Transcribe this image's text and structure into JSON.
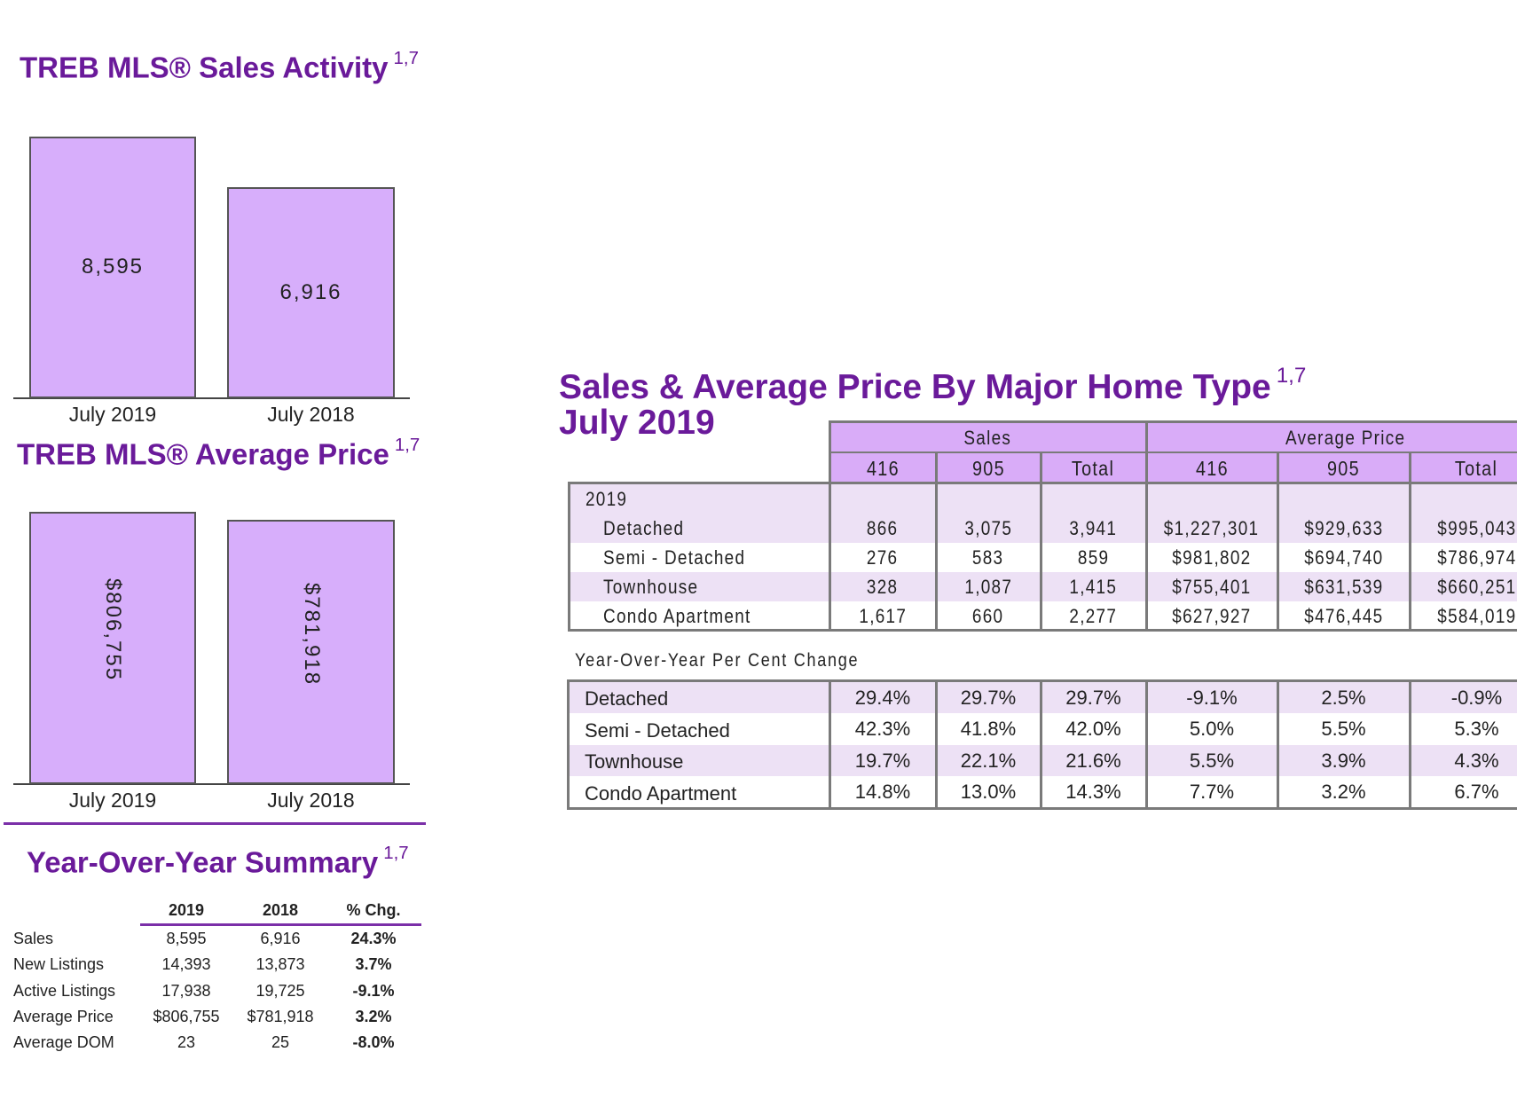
{
  "sales_activity": {
    "title": "TREB MLS® Sales Activity",
    "footnote": "1,7"
  },
  "average_price": {
    "title": "TREB MLS® Average Price",
    "footnote": "1,7"
  },
  "chart_data": [
    {
      "type": "bar",
      "title": "TREB MLS® Sales Activity",
      "categories": [
        "July 2019",
        "July 2018"
      ],
      "values": [
        8595,
        6916
      ],
      "labels": [
        "8,595",
        "6,916"
      ],
      "xlabel": "",
      "ylabel": "",
      "ylim": [
        0,
        8595
      ]
    },
    {
      "type": "bar",
      "title": "TREB MLS® Average Price",
      "categories": [
        "July 2019",
        "July 2018"
      ],
      "values": [
        806755,
        781918
      ],
      "labels": [
        "$806,755",
        "$781,918"
      ],
      "xlabel": "",
      "ylabel": "",
      "ylim": [
        0,
        806755
      ]
    }
  ],
  "summary": {
    "title": "Year-Over-Year Summary",
    "footnote": "1,7",
    "headers": [
      "2019",
      "2018",
      "% Chg."
    ],
    "rows": [
      {
        "label": "Sales",
        "y2019": "8,595",
        "y2018": "6,916",
        "chg": "24.3%"
      },
      {
        "label": "New Listings",
        "y2019": "14,393",
        "y2018": "13,873",
        "chg": "3.7%"
      },
      {
        "label": "Active Listings",
        "y2019": "17,938",
        "y2018": "19,725",
        "chg": "-9.1%"
      },
      {
        "label": "Average Price",
        "y2019": "$806,755",
        "y2018": "$781,918",
        "chg": "3.2%"
      },
      {
        "label": "Average DOM",
        "y2019": "23",
        "y2018": "25",
        "chg": "-8.0%"
      }
    ]
  },
  "home_type": {
    "title": "Sales & Average Price By Major Home Type",
    "footnote": "1,7",
    "subtitle": "July 2019",
    "group_headers": [
      "Sales",
      "Average Price"
    ],
    "col_headers": [
      "416",
      "905",
      "Total",
      "416",
      "905",
      "Total"
    ],
    "year_label": "2019",
    "rows": [
      {
        "label": "Detached",
        "values": [
          "866",
          "3,075",
          "3,941",
          "$1,227,301",
          "$929,633",
          "$995,043"
        ]
      },
      {
        "label": "Semi - Detached",
        "values": [
          "276",
          "583",
          "859",
          "$981,802",
          "$694,740",
          "$786,974"
        ]
      },
      {
        "label": "Townhouse",
        "values": [
          "328",
          "1,087",
          "1,415",
          "$755,401",
          "$631,539",
          "$660,251"
        ]
      },
      {
        "label": "Condo Apartment",
        "values": [
          "1,617",
          "660",
          "2,277",
          "$627,927",
          "$476,445",
          "$584,019"
        ]
      }
    ],
    "yoy_label": "Year-Over-Year Per Cent Change",
    "yoy_rows": [
      {
        "label": "Detached",
        "values": [
          "29.4%",
          "29.7%",
          "29.7%",
          "-9.1%",
          "2.5%",
          "-0.9%"
        ]
      },
      {
        "label": "Semi - Detached",
        "values": [
          "42.3%",
          "41.8%",
          "42.0%",
          "5.0%",
          "5.5%",
          "5.3%"
        ]
      },
      {
        "label": "Townhouse",
        "values": [
          "19.7%",
          "22.1%",
          "21.6%",
          "5.5%",
          "3.9%",
          "4.3%"
        ]
      },
      {
        "label": "Condo Apartment",
        "values": [
          "14.8%",
          "13.0%",
          "14.3%",
          "7.7%",
          "3.2%",
          "6.7%"
        ]
      }
    ]
  },
  "colors": {
    "title": "#6a1a9a",
    "bar": "#d7aefb",
    "header": "#d9acf8",
    "row_tint": "#ede1f5",
    "rule": "#7b2fa8"
  }
}
